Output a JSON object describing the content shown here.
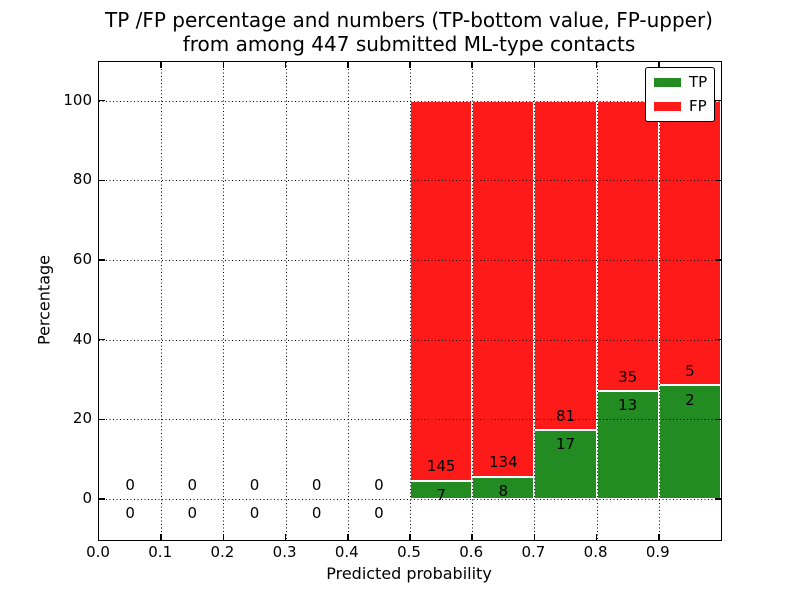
{
  "title": {
    "line1": "TP /FP percentage and numbers (TP-bottom value, FP-upper)",
    "line2": "from among 447 submitted ML-type contacts"
  },
  "axes": {
    "xlabel": "Predicted probability",
    "ylabel": "Percentage"
  },
  "legend": {
    "items": [
      {
        "label": "TP",
        "color": "#228b22"
      },
      {
        "label": "FP",
        "color": "#ff1a1a"
      }
    ]
  },
  "chart_data": {
    "type": "bar",
    "stacked": true,
    "title": "TP /FP percentage and numbers (TP-bottom value, FP-upper) from among 447 submitted ML-type contacts",
    "xlabel": "Predicted probability",
    "ylabel": "Percentage",
    "total_submitted": 447,
    "xlim": [
      0.0,
      1.0
    ],
    "ylim": [
      -10.3,
      109.7
    ],
    "grid": true,
    "legend_position": "upper right",
    "x_ticks": [
      0.0,
      0.1,
      0.2,
      0.3,
      0.4,
      0.5,
      0.6,
      0.7,
      0.8,
      0.9
    ],
    "x_tick_labels": [
      "0.0",
      "0.1",
      "0.2",
      "0.3",
      "0.4",
      "0.5",
      "0.6",
      "0.7",
      "0.8",
      "0.9"
    ],
    "y_ticks": [
      0,
      20,
      40,
      60,
      80,
      100
    ],
    "y_tick_labels": [
      "0",
      "20",
      "40",
      "60",
      "80",
      "100"
    ],
    "series": [
      {
        "name": "TP",
        "color": "#228b22"
      },
      {
        "name": "FP",
        "color": "#ff1a1a"
      }
    ],
    "bins": [
      {
        "x_start": 0.0,
        "x_end": 0.1,
        "tp_count": 0,
        "fp_count": 0,
        "tp_pct": 0,
        "fp_pct": 0,
        "tp_label": "0",
        "fp_label": "0"
      },
      {
        "x_start": 0.1,
        "x_end": 0.2,
        "tp_count": 0,
        "fp_count": 0,
        "tp_pct": 0,
        "fp_pct": 0,
        "tp_label": "0",
        "fp_label": "0"
      },
      {
        "x_start": 0.2,
        "x_end": 0.3,
        "tp_count": 0,
        "fp_count": 0,
        "tp_pct": 0,
        "fp_pct": 0,
        "tp_label": "0",
        "fp_label": "0"
      },
      {
        "x_start": 0.3,
        "x_end": 0.4,
        "tp_count": 0,
        "fp_count": 0,
        "tp_pct": 0,
        "fp_pct": 0,
        "tp_label": "0",
        "fp_label": "0"
      },
      {
        "x_start": 0.4,
        "x_end": 0.5,
        "tp_count": 0,
        "fp_count": 0,
        "tp_pct": 0,
        "fp_pct": 0,
        "tp_label": "0",
        "fp_label": "0"
      },
      {
        "x_start": 0.5,
        "x_end": 0.6,
        "tp_count": 7,
        "fp_count": 145,
        "tp_pct": 4.61,
        "fp_pct": 95.39,
        "tp_label": "7",
        "fp_label": "145"
      },
      {
        "x_start": 0.6,
        "x_end": 0.7,
        "tp_count": 8,
        "fp_count": 134,
        "tp_pct": 5.63,
        "fp_pct": 94.37,
        "tp_label": "8",
        "fp_label": "134"
      },
      {
        "x_start": 0.7,
        "x_end": 0.8,
        "tp_count": 17,
        "fp_count": 81,
        "tp_pct": 17.35,
        "fp_pct": 82.65,
        "tp_label": "17",
        "fp_label": "81"
      },
      {
        "x_start": 0.8,
        "x_end": 0.9,
        "tp_count": 13,
        "fp_count": 35,
        "tp_pct": 27.08,
        "fp_pct": 72.92,
        "tp_label": "13",
        "fp_label": "35"
      },
      {
        "x_start": 0.9,
        "x_end": 1.0,
        "tp_count": 2,
        "fp_count": 5,
        "tp_pct": 28.57,
        "fp_pct": 71.43,
        "tp_label": "2",
        "fp_label": "5"
      }
    ]
  }
}
